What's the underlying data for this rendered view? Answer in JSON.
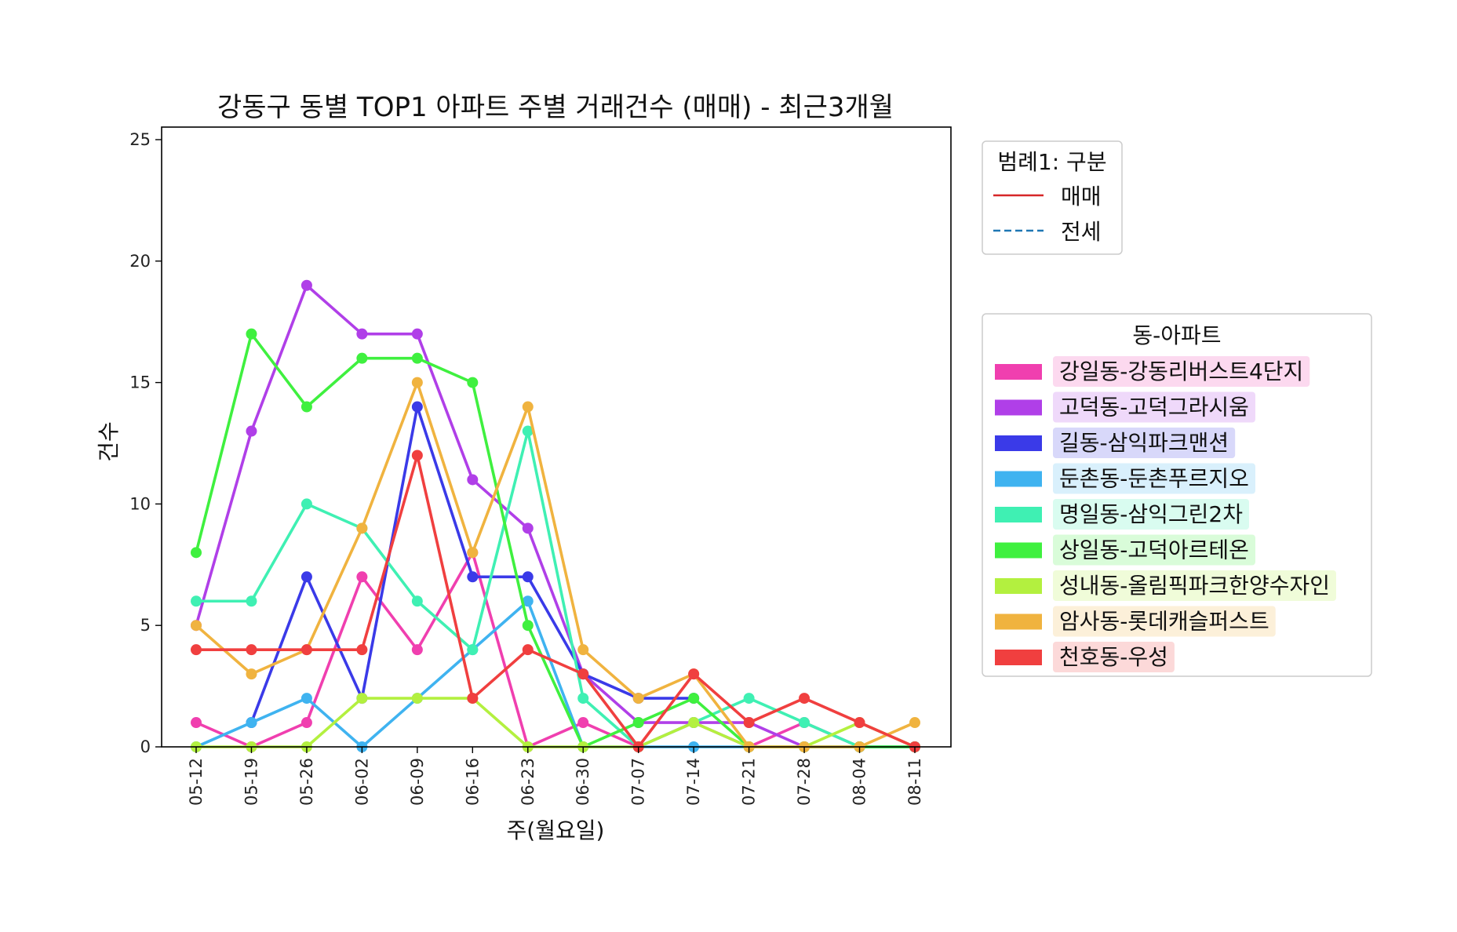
{
  "chart_data": {
    "type": "line",
    "title": "강동구 동별 TOP1 아파트 주별 거래건수 (매매) - 최근3개월",
    "xlabel": "주(월요일)",
    "ylabel": "건수",
    "ylim": [
      0,
      25
    ],
    "yticks": [
      0,
      5,
      10,
      15,
      20,
      25
    ],
    "categories": [
      "05-12",
      "05-19",
      "05-26",
      "06-02",
      "06-09",
      "06-16",
      "06-23",
      "06-30",
      "07-07",
      "07-14",
      "07-21",
      "07-28",
      "08-04",
      "08-11"
    ],
    "grid": false,
    "series": [
      {
        "name": "강일동-강동리버스트4단지",
        "color": "#f03faf",
        "values": [
          1,
          0,
          1,
          7,
          4,
          8,
          0,
          1,
          0,
          1,
          0,
          1,
          0,
          0
        ]
      },
      {
        "name": "고덕동-고덕그라시움",
        "color": "#b03fe8",
        "values": [
          5,
          13,
          19,
          17,
          17,
          11,
          9,
          3,
          1,
          1,
          1,
          0,
          0,
          0
        ]
      },
      {
        "name": "길동-삼익파크맨션",
        "color": "#3a3ae8",
        "values": [
          null,
          1,
          7,
          2,
          14,
          7,
          7,
          3,
          2,
          2,
          null,
          null,
          null,
          null
        ]
      },
      {
        "name": "둔촌동-둔촌푸르지오",
        "color": "#3fb3f0",
        "values": [
          0,
          1,
          2,
          0,
          2,
          4,
          6,
          0,
          0,
          0,
          0,
          0,
          0,
          0
        ]
      },
      {
        "name": "명일동-삼익그린2차",
        "color": "#3ff0b3",
        "values": [
          6,
          6,
          10,
          9,
          6,
          4,
          13,
          2,
          0,
          1,
          2,
          1,
          0,
          0
        ]
      },
      {
        "name": "상일동-고덕아르테온",
        "color": "#3ff03f",
        "values": [
          8,
          17,
          14,
          16,
          16,
          15,
          5,
          0,
          1,
          2,
          0,
          0,
          0,
          0
        ]
      },
      {
        "name": "성내동-올림픽파크한양수자인",
        "color": "#b3f03f",
        "values": [
          0,
          0,
          0,
          2,
          2,
          2,
          0,
          0,
          0,
          1,
          0,
          0,
          1,
          0
        ]
      },
      {
        "name": "암사동-롯데캐슬퍼스트",
        "color": "#f0b33f",
        "values": [
          5,
          3,
          4,
          9,
          15,
          8,
          14,
          4,
          2,
          3,
          0,
          0,
          0,
          1
        ]
      },
      {
        "name": "천호동-우성",
        "color": "#f03f3f",
        "values": [
          4,
          4,
          4,
          4,
          12,
          2,
          4,
          3,
          0,
          3,
          1,
          2,
          1,
          0
        ]
      }
    ],
    "legend_style": {
      "title": "범례1: 구분",
      "placement": "upper-right-outside",
      "items": [
        {
          "label": "매매",
          "color": "#d62728",
          "dash": "solid"
        },
        {
          "label": "전세",
          "color": "#1f77b4",
          "dash": "dashed"
        }
      ]
    },
    "legend_series": {
      "title": "동-아파트",
      "placement": "right-outside"
    }
  }
}
